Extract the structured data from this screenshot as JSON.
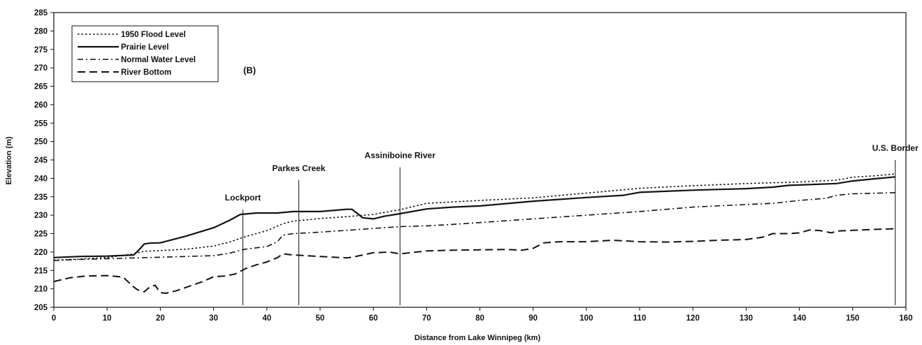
{
  "chart_data": {
    "type": "line",
    "panel_label": "(B)",
    "xlabel": "Distance from Lake Winnipeg (km)",
    "ylabel": "Elevation (m)",
    "xlim": [
      0,
      160
    ],
    "ylim": [
      205,
      285
    ],
    "xticks": [
      0,
      10,
      20,
      30,
      40,
      50,
      60,
      70,
      80,
      90,
      100,
      110,
      120,
      130,
      140,
      150,
      160
    ],
    "yticks": [
      205,
      210,
      215,
      220,
      225,
      230,
      235,
      240,
      245,
      250,
      255,
      260,
      265,
      270,
      275,
      280,
      285
    ],
    "grid": false,
    "legend_position": "top-left",
    "series": [
      {
        "name": "1950 Flood Level",
        "style": "dotted",
        "x": [
          0,
          5,
          10,
          15,
          17,
          20,
          25,
          30,
          33,
          36,
          40,
          43,
          45,
          50,
          55,
          60,
          65,
          70,
          75,
          80,
          90,
          100,
          110,
          120,
          130,
          140,
          147,
          150,
          155,
          158
        ],
        "y": [
          217.8,
          218.1,
          218.5,
          219.5,
          220.2,
          220.4,
          220.8,
          221.6,
          222.7,
          224.2,
          225.8,
          227.7,
          228.4,
          229.1,
          229.6,
          230.2,
          231.5,
          233.2,
          233.6,
          234.0,
          234.7,
          236.0,
          237.3,
          238.0,
          238.6,
          239.0,
          239.5,
          240.3,
          240.8,
          241.2
        ]
      },
      {
        "name": "Prairie Level",
        "style": "solid",
        "x": [
          0,
          5,
          10,
          15,
          16,
          17,
          18,
          20,
          25,
          30,
          33,
          35,
          38,
          42,
          45,
          50,
          55,
          56,
          58,
          60,
          62,
          65,
          70,
          75,
          80,
          90,
          100,
          107,
          110,
          120,
          130,
          135,
          138,
          147,
          150,
          155,
          158
        ],
        "y": [
          218.5,
          218.8,
          218.9,
          219.2,
          220.6,
          222.2,
          222.4,
          222.5,
          224.4,
          226.6,
          228.6,
          230.2,
          230.6,
          230.6,
          231.0,
          231.0,
          231.6,
          231.6,
          229.3,
          229.0,
          229.7,
          230.4,
          231.7,
          232.2,
          232.5,
          233.8,
          234.8,
          235.4,
          236.2,
          236.8,
          237.2,
          237.6,
          238.1,
          238.6,
          239.3,
          240.0,
          240.4
        ]
      },
      {
        "name": "Normal Water Level",
        "style": "dashdot",
        "x": [
          0,
          5,
          10,
          15,
          20,
          25,
          30,
          33,
          36,
          40,
          42,
          43,
          45,
          50,
          55,
          60,
          65,
          70,
          75,
          80,
          90,
          100,
          110,
          120,
          130,
          135,
          140,
          145,
          147,
          150,
          155,
          158
        ],
        "y": [
          217.7,
          218.0,
          218.2,
          218.4,
          218.6,
          218.8,
          219.0,
          219.7,
          220.8,
          221.5,
          222.8,
          224.6,
          225.0,
          225.4,
          225.9,
          226.4,
          226.9,
          227.1,
          227.5,
          228.0,
          229.0,
          230.0,
          231.0,
          232.2,
          232.9,
          233.2,
          234.0,
          234.6,
          235.4,
          235.8,
          236.0,
          236.1
        ]
      },
      {
        "name": "River Bottom",
        "style": "dashed",
        "x": [
          0,
          3,
          6,
          10,
          13,
          15,
          16,
          17,
          18,
          19,
          20,
          21,
          23,
          26,
          28,
          30,
          32,
          34,
          36,
          38,
          40,
          42,
          43,
          45,
          50,
          55,
          56,
          60,
          63,
          65,
          70,
          75,
          80,
          85,
          88,
          90,
          92,
          95,
          100,
          105,
          110,
          115,
          120,
          125,
          130,
          133,
          135,
          138,
          140,
          142,
          144,
          146,
          147,
          150,
          155,
          158
        ],
        "y": [
          212.0,
          213.0,
          213.5,
          213.6,
          213.2,
          210.5,
          209.5,
          209.2,
          210.5,
          211.0,
          209.0,
          208.8,
          209.5,
          211.0,
          212.0,
          213.3,
          213.5,
          214.0,
          215.5,
          216.5,
          217.3,
          218.5,
          219.5,
          219.2,
          218.8,
          218.4,
          218.6,
          219.8,
          220.0,
          219.5,
          220.3,
          220.5,
          220.6,
          220.7,
          220.5,
          221.0,
          222.5,
          222.8,
          222.8,
          223.2,
          222.8,
          222.7,
          222.9,
          223.2,
          223.4,
          224.0,
          225.0,
          225.0,
          225.2,
          226.0,
          225.8,
          225.2,
          225.7,
          225.9,
          226.2,
          226.3
        ]
      }
    ],
    "annotations": [
      {
        "label": "Lockport",
        "x": 35.5,
        "line_top": 231.5
      },
      {
        "label": "Parkes Creek",
        "x": 46,
        "line_top": 239.5
      },
      {
        "label": "Assiniboine River",
        "x": 65,
        "line_top": 243
      },
      {
        "label": "U.S. Border",
        "x": 158,
        "line_top": 245
      }
    ]
  }
}
